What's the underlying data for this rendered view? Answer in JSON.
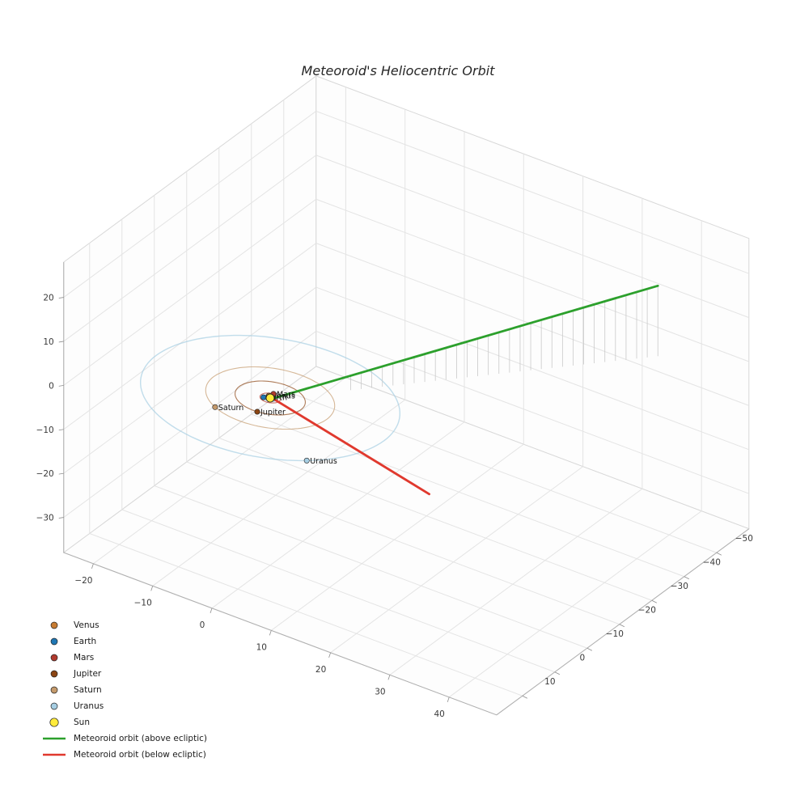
{
  "chart_data": {
    "type": "line",
    "projection": "3d",
    "title": "Meteoroid's Heliocentric Orbit",
    "axes": {
      "x": {
        "ticks": [
          -20,
          -10,
          0,
          10,
          20,
          30,
          40
        ],
        "range": [
          -25,
          48
        ]
      },
      "y": {
        "ticks": [
          -50,
          -40,
          -30,
          -20,
          -10,
          0,
          10
        ],
        "range": [
          -60,
          18
        ]
      },
      "z": {
        "ticks": [
          -30,
          -20,
          -10,
          0,
          10,
          20
        ],
        "range": [
          -38,
          28
        ]
      }
    },
    "grid": true,
    "background": "#ffffff",
    "sun": {
      "label": "Sun",
      "color": "#ffeb3b",
      "edge_color": "#1a1a1a",
      "position": [
        0,
        0,
        0
      ]
    },
    "planets": [
      {
        "name": "Venus",
        "color": "#c77c33",
        "orbit_radius_au": 0.72,
        "angle_deg": 225
      },
      {
        "name": "Earth",
        "color": "#1f77b4",
        "orbit_radius_au": 1.0,
        "angle_deg": 150
      },
      {
        "name": "Mars",
        "color": "#b03a2e",
        "orbit_radius_au": 1.52,
        "angle_deg": 260
      },
      {
        "name": "Jupiter",
        "color": "#8b4513",
        "orbit_radius_au": 5.2,
        "angle_deg": 83
      },
      {
        "name": "Saturn",
        "color": "#c49a6c",
        "orbit_radius_au": 9.55,
        "angle_deg": 120
      },
      {
        "name": "Uranus",
        "color": "#a6cee3",
        "orbit_radius_au": 19.2,
        "angle_deg": 45
      }
    ],
    "meteoroid": {
      "above": {
        "label": "Meteoroid orbit (above ecliptic)",
        "color": "#2ca02c",
        "start": [
          0.5,
          -0.2,
          0.1
        ],
        "end": [
          37,
          -52,
          16
        ]
      },
      "below": {
        "label": "Meteoroid orbit (below ecliptic)",
        "color": "#e0392e",
        "start": [
          0.5,
          -0.2,
          -0.1
        ],
        "end": [
          17,
          -18,
          -23
        ]
      },
      "drop_lines": {
        "color": "#c9c9c9",
        "count": 30,
        "t_start": 0.2,
        "t_end": 1.0
      }
    }
  },
  "legend": {
    "items": [
      {
        "label": "Venus",
        "swatch": "dot",
        "color": "#c77c33"
      },
      {
        "label": "Earth",
        "swatch": "dot",
        "color": "#1f77b4"
      },
      {
        "label": "Mars",
        "swatch": "dot",
        "color": "#b03a2e"
      },
      {
        "label": "Jupiter",
        "swatch": "dot",
        "color": "#8b4513"
      },
      {
        "label": "Saturn",
        "swatch": "dot",
        "color": "#c49a6c"
      },
      {
        "label": "Uranus",
        "swatch": "dot",
        "color": "#a6cee3"
      },
      {
        "label": "Sun",
        "swatch": "dot-large",
        "color": "#ffeb3b"
      },
      {
        "label": "Meteoroid orbit (above ecliptic)",
        "swatch": "line",
        "color": "#2ca02c"
      },
      {
        "label": "Meteoroid orbit (below ecliptic)",
        "swatch": "line",
        "color": "#e0392e"
      }
    ]
  }
}
